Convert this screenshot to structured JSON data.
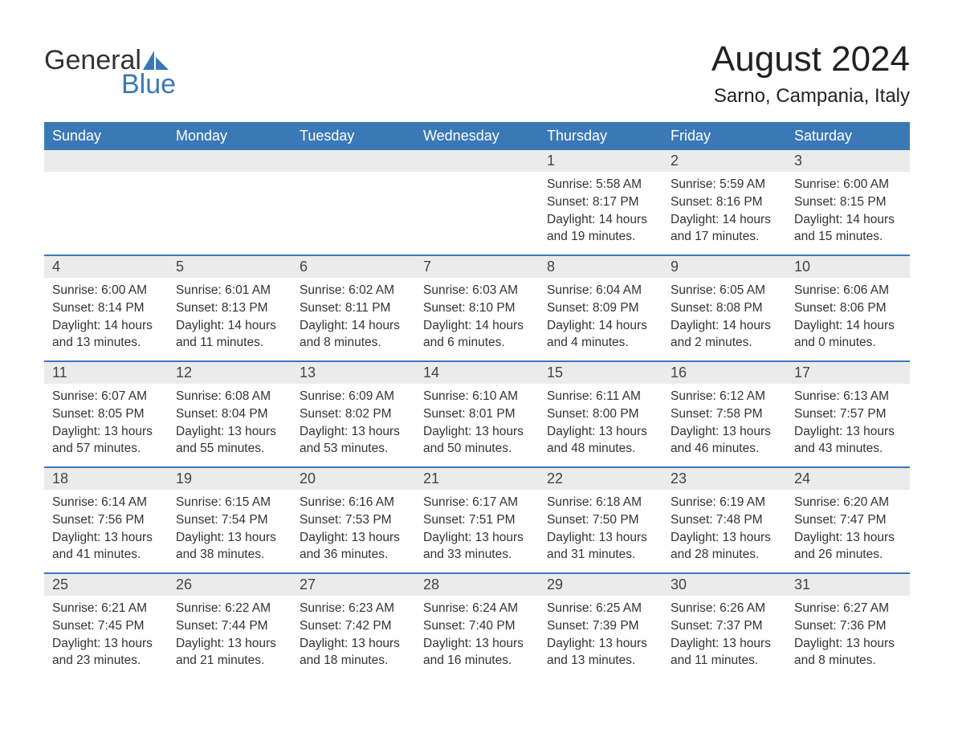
{
  "logo": {
    "word1": "General",
    "word2": "Blue"
  },
  "title": "August 2024",
  "location": "Sarno, Campania, Italy",
  "colors": {
    "header_bg": "#3b78b6",
    "header_text": "#ffffff",
    "daynum_bg": "#ebebeb",
    "rule": "#3b78b6",
    "logo_accent": "#3b78b6"
  },
  "day_names": [
    "Sunday",
    "Monday",
    "Tuesday",
    "Wednesday",
    "Thursday",
    "Friday",
    "Saturday"
  ],
  "weeks": [
    [
      {
        "n": "",
        "sunrise": "",
        "sunset": "",
        "daylight": ""
      },
      {
        "n": "",
        "sunrise": "",
        "sunset": "",
        "daylight": ""
      },
      {
        "n": "",
        "sunrise": "",
        "sunset": "",
        "daylight": ""
      },
      {
        "n": "",
        "sunrise": "",
        "sunset": "",
        "daylight": ""
      },
      {
        "n": "1",
        "sunrise": "Sunrise: 5:58 AM",
        "sunset": "Sunset: 8:17 PM",
        "daylight": "Daylight: 14 hours and 19 minutes."
      },
      {
        "n": "2",
        "sunrise": "Sunrise: 5:59 AM",
        "sunset": "Sunset: 8:16 PM",
        "daylight": "Daylight: 14 hours and 17 minutes."
      },
      {
        "n": "3",
        "sunrise": "Sunrise: 6:00 AM",
        "sunset": "Sunset: 8:15 PM",
        "daylight": "Daylight: 14 hours and 15 minutes."
      }
    ],
    [
      {
        "n": "4",
        "sunrise": "Sunrise: 6:00 AM",
        "sunset": "Sunset: 8:14 PM",
        "daylight": "Daylight: 14 hours and 13 minutes."
      },
      {
        "n": "5",
        "sunrise": "Sunrise: 6:01 AM",
        "sunset": "Sunset: 8:13 PM",
        "daylight": "Daylight: 14 hours and 11 minutes."
      },
      {
        "n": "6",
        "sunrise": "Sunrise: 6:02 AM",
        "sunset": "Sunset: 8:11 PM",
        "daylight": "Daylight: 14 hours and 8 minutes."
      },
      {
        "n": "7",
        "sunrise": "Sunrise: 6:03 AM",
        "sunset": "Sunset: 8:10 PM",
        "daylight": "Daylight: 14 hours and 6 minutes."
      },
      {
        "n": "8",
        "sunrise": "Sunrise: 6:04 AM",
        "sunset": "Sunset: 8:09 PM",
        "daylight": "Daylight: 14 hours and 4 minutes."
      },
      {
        "n": "9",
        "sunrise": "Sunrise: 6:05 AM",
        "sunset": "Sunset: 8:08 PM",
        "daylight": "Daylight: 14 hours and 2 minutes."
      },
      {
        "n": "10",
        "sunrise": "Sunrise: 6:06 AM",
        "sunset": "Sunset: 8:06 PM",
        "daylight": "Daylight: 14 hours and 0 minutes."
      }
    ],
    [
      {
        "n": "11",
        "sunrise": "Sunrise: 6:07 AM",
        "sunset": "Sunset: 8:05 PM",
        "daylight": "Daylight: 13 hours and 57 minutes."
      },
      {
        "n": "12",
        "sunrise": "Sunrise: 6:08 AM",
        "sunset": "Sunset: 8:04 PM",
        "daylight": "Daylight: 13 hours and 55 minutes."
      },
      {
        "n": "13",
        "sunrise": "Sunrise: 6:09 AM",
        "sunset": "Sunset: 8:02 PM",
        "daylight": "Daylight: 13 hours and 53 minutes."
      },
      {
        "n": "14",
        "sunrise": "Sunrise: 6:10 AM",
        "sunset": "Sunset: 8:01 PM",
        "daylight": "Daylight: 13 hours and 50 minutes."
      },
      {
        "n": "15",
        "sunrise": "Sunrise: 6:11 AM",
        "sunset": "Sunset: 8:00 PM",
        "daylight": "Daylight: 13 hours and 48 minutes."
      },
      {
        "n": "16",
        "sunrise": "Sunrise: 6:12 AM",
        "sunset": "Sunset: 7:58 PM",
        "daylight": "Daylight: 13 hours and 46 minutes."
      },
      {
        "n": "17",
        "sunrise": "Sunrise: 6:13 AM",
        "sunset": "Sunset: 7:57 PM",
        "daylight": "Daylight: 13 hours and 43 minutes."
      }
    ],
    [
      {
        "n": "18",
        "sunrise": "Sunrise: 6:14 AM",
        "sunset": "Sunset: 7:56 PM",
        "daylight": "Daylight: 13 hours and 41 minutes."
      },
      {
        "n": "19",
        "sunrise": "Sunrise: 6:15 AM",
        "sunset": "Sunset: 7:54 PM",
        "daylight": "Daylight: 13 hours and 38 minutes."
      },
      {
        "n": "20",
        "sunrise": "Sunrise: 6:16 AM",
        "sunset": "Sunset: 7:53 PM",
        "daylight": "Daylight: 13 hours and 36 minutes."
      },
      {
        "n": "21",
        "sunrise": "Sunrise: 6:17 AM",
        "sunset": "Sunset: 7:51 PM",
        "daylight": "Daylight: 13 hours and 33 minutes."
      },
      {
        "n": "22",
        "sunrise": "Sunrise: 6:18 AM",
        "sunset": "Sunset: 7:50 PM",
        "daylight": "Daylight: 13 hours and 31 minutes."
      },
      {
        "n": "23",
        "sunrise": "Sunrise: 6:19 AM",
        "sunset": "Sunset: 7:48 PM",
        "daylight": "Daylight: 13 hours and 28 minutes."
      },
      {
        "n": "24",
        "sunrise": "Sunrise: 6:20 AM",
        "sunset": "Sunset: 7:47 PM",
        "daylight": "Daylight: 13 hours and 26 minutes."
      }
    ],
    [
      {
        "n": "25",
        "sunrise": "Sunrise: 6:21 AM",
        "sunset": "Sunset: 7:45 PM",
        "daylight": "Daylight: 13 hours and 23 minutes."
      },
      {
        "n": "26",
        "sunrise": "Sunrise: 6:22 AM",
        "sunset": "Sunset: 7:44 PM",
        "daylight": "Daylight: 13 hours and 21 minutes."
      },
      {
        "n": "27",
        "sunrise": "Sunrise: 6:23 AM",
        "sunset": "Sunset: 7:42 PM",
        "daylight": "Daylight: 13 hours and 18 minutes."
      },
      {
        "n": "28",
        "sunrise": "Sunrise: 6:24 AM",
        "sunset": "Sunset: 7:40 PM",
        "daylight": "Daylight: 13 hours and 16 minutes."
      },
      {
        "n": "29",
        "sunrise": "Sunrise: 6:25 AM",
        "sunset": "Sunset: 7:39 PM",
        "daylight": "Daylight: 13 hours and 13 minutes."
      },
      {
        "n": "30",
        "sunrise": "Sunrise: 6:26 AM",
        "sunset": "Sunset: 7:37 PM",
        "daylight": "Daylight: 13 hours and 11 minutes."
      },
      {
        "n": "31",
        "sunrise": "Sunrise: 6:27 AM",
        "sunset": "Sunset: 7:36 PM",
        "daylight": "Daylight: 13 hours and 8 minutes."
      }
    ]
  ]
}
